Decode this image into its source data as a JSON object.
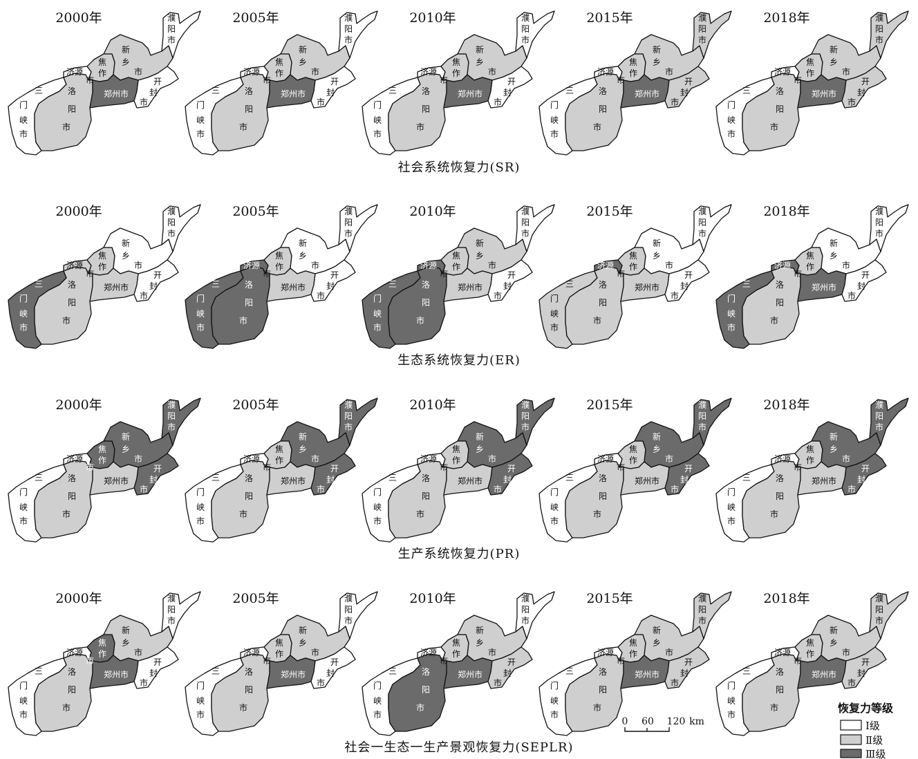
{
  "colors": {
    "I": "#ffffff",
    "II": "#cfcfcf",
    "III": "#6b6b6b",
    "outline": "#111111"
  },
  "years": [
    "2000年",
    "2005年",
    "2010年",
    "2015年",
    "2018年"
  ],
  "cities": {
    "sanmenxia": "三门峡市",
    "luoyang": "洛阳市",
    "jiyuan": "济源",
    "jiaozuo": "焦作市",
    "xinxiang": "新乡市",
    "zhengzhou": "郑州市",
    "kaifeng": "开封市",
    "puyang": "濮阳市"
  },
  "rows": [
    {
      "caption": "社会系统恢复力(SR)",
      "levels": [
        {
          "sanmenxia": "I",
          "luoyang": "II",
          "jiyuan": "I",
          "jiaozuo": "II",
          "xinxiang": "II",
          "zhengzhou": "III",
          "kaifeng": "I",
          "puyang": "I"
        },
        {
          "sanmenxia": "I",
          "luoyang": "II",
          "jiyuan": "I",
          "jiaozuo": "II",
          "xinxiang": "II",
          "zhengzhou": "III",
          "kaifeng": "I",
          "puyang": "I"
        },
        {
          "sanmenxia": "I",
          "luoyang": "II",
          "jiyuan": "I",
          "jiaozuo": "II",
          "xinxiang": "II",
          "zhengzhou": "III",
          "kaifeng": "I",
          "puyang": "I"
        },
        {
          "sanmenxia": "I",
          "luoyang": "II",
          "jiyuan": "I",
          "jiaozuo": "II",
          "xinxiang": "II",
          "zhengzhou": "III",
          "kaifeng": "II",
          "puyang": "II"
        },
        {
          "sanmenxia": "I",
          "luoyang": "II",
          "jiyuan": "I",
          "jiaozuo": "II",
          "xinxiang": "II",
          "zhengzhou": "III",
          "kaifeng": "II",
          "puyang": "II"
        }
      ]
    },
    {
      "caption": "生态系统恢复力(ER)",
      "levels": [
        {
          "sanmenxia": "III",
          "luoyang": "II",
          "jiyuan": "II",
          "jiaozuo": "II",
          "xinxiang": "I",
          "zhengzhou": "II",
          "kaifeng": "I",
          "puyang": "I"
        },
        {
          "sanmenxia": "III",
          "luoyang": "III",
          "jiyuan": "III",
          "jiaozuo": "II",
          "xinxiang": "I",
          "zhengzhou": "II",
          "kaifeng": "I",
          "puyang": "I"
        },
        {
          "sanmenxia": "III",
          "luoyang": "III",
          "jiyuan": "III",
          "jiaozuo": "II",
          "xinxiang": "II",
          "zhengzhou": "II",
          "kaifeng": "I",
          "puyang": "I"
        },
        {
          "sanmenxia": "II",
          "luoyang": "II",
          "jiyuan": "III",
          "jiaozuo": "II",
          "xinxiang": "I",
          "zhengzhou": "II",
          "kaifeng": "I",
          "puyang": "I"
        },
        {
          "sanmenxia": "III",
          "luoyang": "II",
          "jiyuan": "III",
          "jiaozuo": "II",
          "xinxiang": "I",
          "zhengzhou": "III",
          "kaifeng": "I",
          "puyang": "I"
        }
      ]
    },
    {
      "caption": "生产系统恢复力(PR)",
      "levels": [
        {
          "sanmenxia": "I",
          "luoyang": "II",
          "jiyuan": "I",
          "jiaozuo": "III",
          "xinxiang": "III",
          "zhengzhou": "II",
          "kaifeng": "III",
          "puyang": "III"
        },
        {
          "sanmenxia": "I",
          "luoyang": "II",
          "jiyuan": "I",
          "jiaozuo": "II",
          "xinxiang": "III",
          "zhengzhou": "II",
          "kaifeng": "III",
          "puyang": "III"
        },
        {
          "sanmenxia": "I",
          "luoyang": "II",
          "jiyuan": "I",
          "jiaozuo": "II",
          "xinxiang": "III",
          "zhengzhou": "II",
          "kaifeng": "III",
          "puyang": "III"
        },
        {
          "sanmenxia": "I",
          "luoyang": "II",
          "jiyuan": "I",
          "jiaozuo": "II",
          "xinxiang": "III",
          "zhengzhou": "II",
          "kaifeng": "III",
          "puyang": "III"
        },
        {
          "sanmenxia": "I",
          "luoyang": "II",
          "jiyuan": "I",
          "jiaozuo": "II",
          "xinxiang": "III",
          "zhengzhou": "II",
          "kaifeng": "III",
          "puyang": "III"
        }
      ]
    },
    {
      "caption": "社会一生态一生产景观恢复力(SEPLR)",
      "levels": [
        {
          "sanmenxia": "I",
          "luoyang": "II",
          "jiyuan": "I",
          "jiaozuo": "III",
          "xinxiang": "II",
          "zhengzhou": "III",
          "kaifeng": "I",
          "puyang": "I"
        },
        {
          "sanmenxia": "I",
          "luoyang": "II",
          "jiyuan": "I",
          "jiaozuo": "II",
          "xinxiang": "II",
          "zhengzhou": "III",
          "kaifeng": "I",
          "puyang": "I"
        },
        {
          "sanmenxia": "I",
          "luoyang": "III",
          "jiyuan": "I",
          "jiaozuo": "II",
          "xinxiang": "II",
          "zhengzhou": "III",
          "kaifeng": "II",
          "puyang": "I"
        },
        {
          "sanmenxia": "I",
          "luoyang": "II",
          "jiyuan": "I",
          "jiaozuo": "II",
          "xinxiang": "II",
          "zhengzhou": "III",
          "kaifeng": "II",
          "puyang": "II"
        },
        {
          "sanmenxia": "I",
          "luoyang": "II",
          "jiyuan": "I",
          "jiaozuo": "II",
          "xinxiang": "II",
          "zhengzhou": "III",
          "kaifeng": "II",
          "puyang": "II"
        }
      ]
    }
  ],
  "legend": {
    "title": "恢复力等级",
    "items": [
      {
        "level": "I",
        "label": "Ⅰ级"
      },
      {
        "level": "II",
        "label": "Ⅱ级"
      },
      {
        "level": "III",
        "label": "Ⅲ级"
      }
    ]
  },
  "scale_bar": {
    "ticks": [
      "0",
      "60",
      "120"
    ],
    "unit": "km"
  }
}
